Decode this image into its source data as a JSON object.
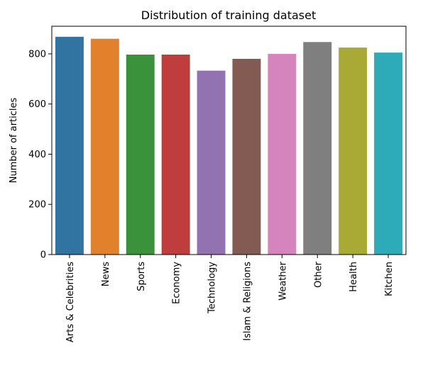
{
  "chart_data": {
    "type": "bar",
    "title": "Distribution of training dataset",
    "xlabel": "",
    "ylabel": "Number of articles",
    "categories": [
      "Arts & Celebrities",
      "News",
      "Sports",
      "Economy",
      "Technology",
      "Islam & Religions",
      "Weather",
      "Other",
      "Health",
      "Kitchen"
    ],
    "values": [
      868,
      860,
      797,
      797,
      733,
      780,
      800,
      847,
      825,
      805
    ],
    "colors": [
      "#3274a1",
      "#e1812c",
      "#3a923a",
      "#c03d3e",
      "#9372b2",
      "#845b53",
      "#d684bd",
      "#7f7f7f",
      "#a9aa35",
      "#2eabb8"
    ],
    "ylim": [
      0,
      910
    ],
    "yticks": [
      0,
      200,
      400,
      600,
      800
    ],
    "grid": false,
    "legend": "none"
  }
}
